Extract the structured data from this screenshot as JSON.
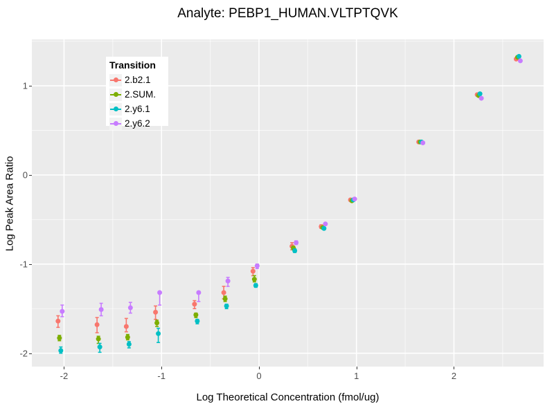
{
  "window": {
    "title": "Analyte: PEBP1_HUMAN.VLTPTQVK"
  },
  "chart_data": {
    "type": "scatter",
    "title": "Analyte: PEBP1_HUMAN.VLTPTQVK",
    "xlabel": "Log Theoretical Concentration (fmol/ug)",
    "ylabel": "Log Peak Area Ratio",
    "legend_title": "Transition",
    "legend_position": "top-left-inside",
    "grid": "major-and-minor, white on gray panel",
    "panel_bg": "#EBEBEB",
    "grid_color": "#FFFFFF",
    "xlim": [
      -2.33,
      2.92
    ],
    "ylim": [
      -2.15,
      1.52
    ],
    "x_ticks": [
      -2,
      -1,
      0,
      1,
      2
    ],
    "y_ticks": [
      -2,
      -1,
      0,
      1
    ],
    "x_minor_ticks": [
      -1.5,
      -0.5,
      0.5,
      1.5,
      2.5
    ],
    "y_minor_ticks": [
      -1.5,
      -0.5,
      0.5,
      1.5
    ],
    "x": [
      -2.04,
      -1.64,
      -1.34,
      -1.04,
      -0.64,
      -0.34,
      -0.04,
      0.36,
      0.66,
      0.96,
      1.66,
      2.26,
      2.66
    ],
    "series": [
      {
        "name": "2.b2.1",
        "color": "#F8766D",
        "y": [
          -1.64,
          -1.68,
          -1.7,
          -1.54,
          -1.45,
          -1.32,
          -1.08,
          -0.8,
          -0.58,
          -0.28,
          0.37,
          0.9,
          1.3
        ],
        "y_lo": [
          -1.71,
          -1.77,
          -1.76,
          -1.62,
          -1.5,
          -1.39,
          -1.13,
          -0.84,
          -0.6,
          -0.29,
          0.36,
          0.89,
          1.29
        ],
        "y_hi": [
          -1.58,
          -1.6,
          -1.61,
          -1.47,
          -1.41,
          -1.25,
          -1.04,
          -0.76,
          -0.56,
          -0.27,
          0.38,
          0.91,
          1.31
        ]
      },
      {
        "name": "2.SUM.",
        "color": "#7CAE00",
        "y": [
          -1.83,
          -1.84,
          -1.82,
          -1.66,
          -1.57,
          -1.39,
          -1.17,
          -0.82,
          -0.59,
          -0.29,
          0.37,
          0.89,
          1.32
        ],
        "y_lo": [
          -1.86,
          -1.89,
          -1.85,
          -1.7,
          -1.6,
          -1.42,
          -1.2,
          -0.84,
          -0.6,
          -0.3,
          0.36,
          0.88,
          1.31
        ],
        "y_hi": [
          -1.8,
          -1.81,
          -1.79,
          -1.63,
          -1.55,
          -1.36,
          -1.13,
          -0.8,
          -0.58,
          -0.28,
          0.38,
          0.9,
          1.33
        ]
      },
      {
        "name": "2.y6.1",
        "color": "#00BFC4",
        "y": [
          -1.97,
          -1.93,
          -1.9,
          -1.78,
          -1.64,
          -1.47,
          -1.24,
          -0.85,
          -0.6,
          -0.28,
          0.37,
          0.91,
          1.33
        ],
        "y_lo": [
          -2.0,
          -1.99,
          -1.94,
          -1.88,
          -1.67,
          -1.5,
          -1.26,
          -0.87,
          -0.61,
          -0.29,
          0.36,
          0.9,
          1.32
        ],
        "y_hi": [
          -1.93,
          -1.89,
          -1.87,
          -1.72,
          -1.62,
          -1.45,
          -1.22,
          -0.83,
          -0.59,
          -0.27,
          0.38,
          0.92,
          1.34
        ]
      },
      {
        "name": "2.y6.2",
        "color": "#C77CFF",
        "y": [
          -1.53,
          -1.51,
          -1.49,
          -1.32,
          -1.32,
          -1.19,
          -1.02,
          -0.76,
          -0.55,
          -0.27,
          0.36,
          0.86,
          1.28
        ],
        "y_lo": [
          -1.59,
          -1.58,
          -1.55,
          -1.46,
          -1.42,
          -1.25,
          -1.05,
          -0.78,
          -0.56,
          -0.28,
          0.35,
          0.85,
          1.27
        ],
        "y_hi": [
          -1.46,
          -1.44,
          -1.43,
          -1.31,
          -1.31,
          -1.15,
          -1.0,
          -0.74,
          -0.54,
          -0.26,
          0.37,
          0.87,
          1.29
        ]
      }
    ]
  }
}
